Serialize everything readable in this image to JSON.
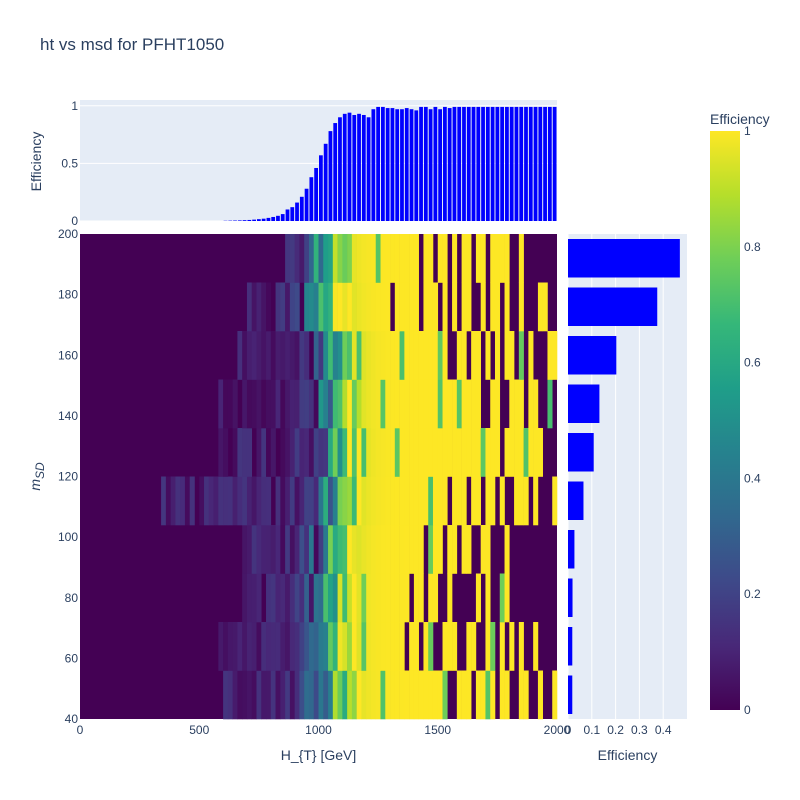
{
  "figure": {
    "title": "ht vs msd for PFHT1050",
    "colors": {
      "panel_bg": "#e5ecf6",
      "grid": "#ffffff",
      "bar": "#0000ff",
      "text": "#2a3f5f"
    },
    "colorscale": "viridis"
  },
  "chart_data": [
    {
      "id": "top_histogram",
      "type": "bar",
      "xlabel": "",
      "ylabel": "Efficiency",
      "xlim": [
        0,
        2000
      ],
      "ylim": [
        0,
        1.05
      ],
      "bin_width": 20,
      "y_ticks": [
        0,
        0.5,
        1
      ],
      "y_tick_labels": [
        "0",
        "0.5",
        "1"
      ],
      "grid": true,
      "x": [
        610,
        630,
        650,
        670,
        690,
        710,
        730,
        750,
        770,
        790,
        810,
        830,
        850,
        870,
        890,
        910,
        930,
        950,
        970,
        990,
        1010,
        1030,
        1050,
        1070,
        1090,
        1110,
        1130,
        1150,
        1170,
        1190,
        1210,
        1230,
        1250,
        1270,
        1290,
        1310,
        1330,
        1350,
        1370,
        1390,
        1410,
        1430,
        1450,
        1470,
        1490,
        1510,
        1530,
        1550,
        1570,
        1590,
        1610,
        1630,
        1650,
        1670,
        1690,
        1710,
        1730,
        1750,
        1770,
        1790,
        1810,
        1830,
        1850,
        1870,
        1890,
        1910,
        1930,
        1950,
        1970,
        1990
      ],
      "values": [
        0.002,
        0.003,
        0.004,
        0.005,
        0.007,
        0.009,
        0.012,
        0.016,
        0.02,
        0.027,
        0.035,
        0.045,
        0.06,
        0.1,
        0.12,
        0.16,
        0.21,
        0.28,
        0.38,
        0.46,
        0.57,
        0.67,
        0.78,
        0.85,
        0.9,
        0.93,
        0.94,
        0.92,
        0.93,
        0.92,
        0.9,
        0.97,
        0.99,
        0.99,
        0.98,
        0.98,
        0.97,
        0.97,
        0.98,
        0.97,
        0.96,
        0.99,
        0.99,
        0.97,
        0.99,
        0.97,
        0.99,
        0.98,
        0.99,
        0.99,
        0.99,
        0.99,
        0.99,
        0.99,
        0.99,
        0.99,
        0.99,
        0.99,
        0.99,
        0.99,
        0.99,
        0.99,
        0.99,
        0.99,
        0.99,
        0.99,
        0.99,
        0.99,
        0.99,
        0.99
      ]
    },
    {
      "id": "right_histogram",
      "type": "bar",
      "orientation": "horizontal",
      "xlabel": "Efficiency",
      "ylabel": "",
      "xlim": [
        0,
        0.5
      ],
      "ylim": [
        40,
        200
      ],
      "x_ticks": [
        0,
        0.1,
        0.2,
        0.3,
        0.4
      ],
      "x_tick_labels": [
        "0",
        "0.1",
        "0.2",
        "0.3",
        "0.4"
      ],
      "grid": true,
      "categories": [
        48,
        64,
        80,
        96,
        112,
        128,
        144,
        160,
        176,
        192
      ],
      "values": [
        0.018,
        0.018,
        0.019,
        0.027,
        0.065,
        0.108,
        0.132,
        0.203,
        0.375,
        0.47
      ]
    },
    {
      "id": "heatmap",
      "type": "heatmap",
      "title": "ht vs msd for PFHT1050",
      "xlabel": "H_{T} [GeV]",
      "ylabel": "m_SD",
      "xlim": [
        0,
        2000
      ],
      "ylim": [
        40,
        200
      ],
      "x_ticks": [
        0,
        500,
        1000,
        1500,
        2000
      ],
      "y_ticks": [
        40,
        60,
        80,
        100,
        120,
        140,
        160,
        180,
        200
      ],
      "colorbar": {
        "title": "Efficiency",
        "range": [
          0,
          1
        ],
        "ticks": [
          0,
          0.2,
          0.4,
          0.6,
          0.8,
          1
        ],
        "tick_labels": [
          "0",
          "0.2",
          "0.4",
          "0.6",
          "0.8",
          "1"
        ]
      },
      "x_bin_width": 20,
      "y_bins": [
        40,
        56,
        72,
        88,
        104,
        120,
        136,
        152,
        168,
        184,
        200
      ],
      "turn_on_ht": [
        1040,
        1035,
        1030,
        1035,
        1050,
        1060,
        1050,
        1055,
        1010,
        1000
      ],
      "turn_on_width": [
        45,
        45,
        45,
        45,
        45,
        45,
        45,
        45,
        45,
        45
      ],
      "start_ht": [
        600,
        580,
        660,
        680,
        340,
        580,
        580,
        600,
        700,
        860
      ],
      "low_outlier_ht": [
        [
          1540,
          1560,
          1640,
          1740,
          1800,
          1820,
          1880,
          1900,
          1940,
          1960
        ],
        [
          1360,
          1420,
          1480,
          1500,
          1580,
          1600,
          1660,
          1680,
          1740,
          1780,
          1820,
          1860,
          1880,
          1920,
          1940,
          1960,
          1980
        ],
        [
          1380,
          1440,
          1500,
          1520,
          1560,
          1580,
          1600,
          1620,
          1640,
          1680,
          1720,
          1740,
          1800,
          1820,
          1840,
          1860,
          1880,
          1900,
          1920,
          1940,
          1960,
          1980
        ],
        [
          1440,
          1520,
          1580,
          1640,
          1660,
          1720,
          1740,
          1760,
          1800,
          1820,
          1840,
          1860,
          1880,
          1900,
          1920,
          1940,
          1960,
          1980
        ],
        [
          1540,
          1620,
          1680,
          1740,
          1780,
          1800,
          1880,
          1920,
          1940,
          1960
        ],
        [
          1760,
          1940,
          1960,
          1980
        ],
        [
          1680,
          1700,
          1760,
          1780,
          1860,
          1920,
          1940,
          1980
        ],
        [
          1540,
          1560,
          1620,
          1680,
          1720,
          1760,
          1820,
          1860,
          1900,
          1920,
          1940
        ],
        [
          1300,
          1420,
          1500,
          1540,
          1580,
          1640,
          1660,
          1700,
          1760,
          1800,
          1820,
          1860,
          1880,
          1900,
          1960,
          1980
        ],
        [
          1420,
          1480,
          1540,
          1580,
          1640,
          1700,
          1800,
          1820,
          1860,
          1880,
          1900,
          1920,
          1940,
          1960,
          1980
        ]
      ]
    }
  ]
}
